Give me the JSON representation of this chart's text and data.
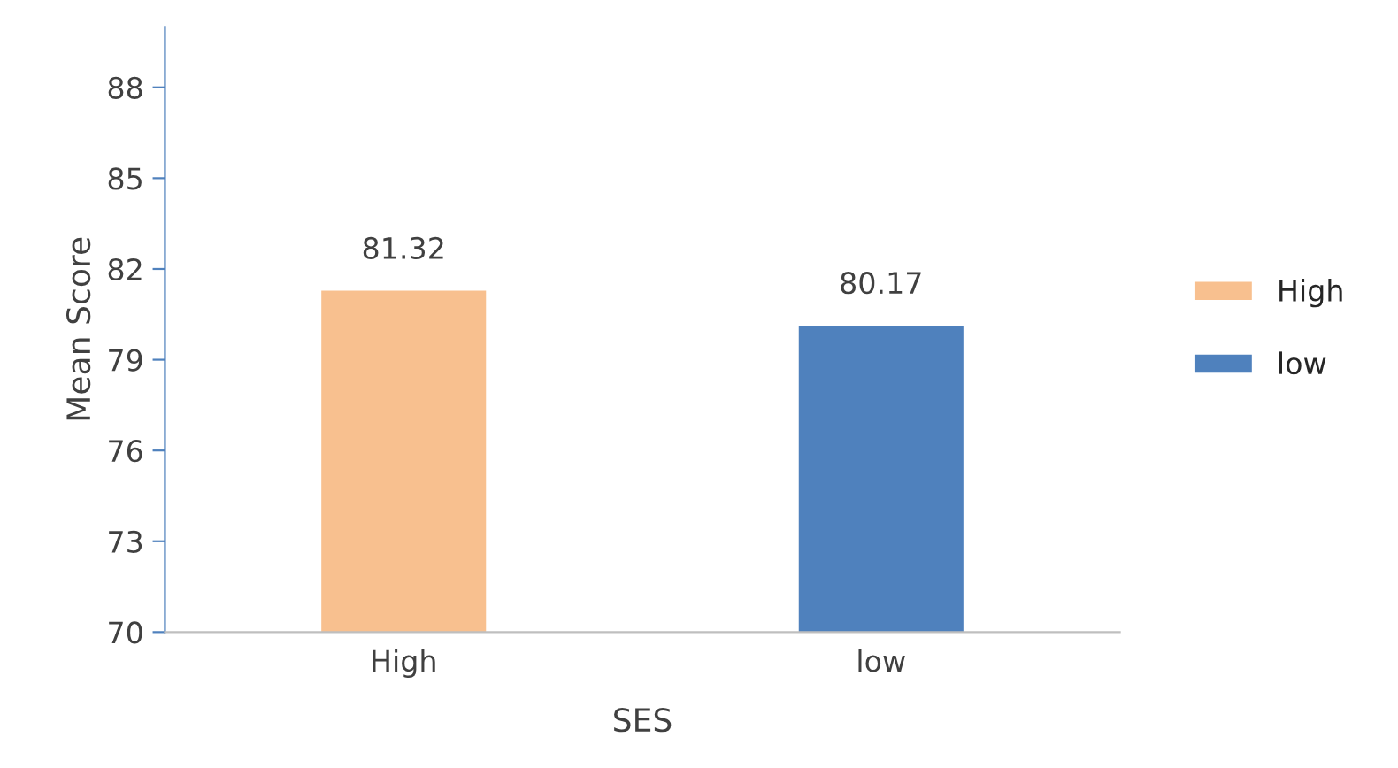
{
  "chart_data": {
    "type": "bar",
    "xlabel": "SES",
    "ylabel": "Mean Score",
    "categories": [
      "High",
      "low"
    ],
    "series": [
      {
        "name": "High",
        "color": "#f8c08f",
        "values": [
          81.32,
          null
        ]
      },
      {
        "name": "low",
        "color": "#4f81bd",
        "values": [
          null,
          80.17
        ]
      }
    ],
    "ylim": [
      70,
      90
    ],
    "yticks": [
      70,
      73,
      76,
      79,
      82,
      85,
      88
    ],
    "data_labels": true,
    "grid": false,
    "legend": "right"
  }
}
